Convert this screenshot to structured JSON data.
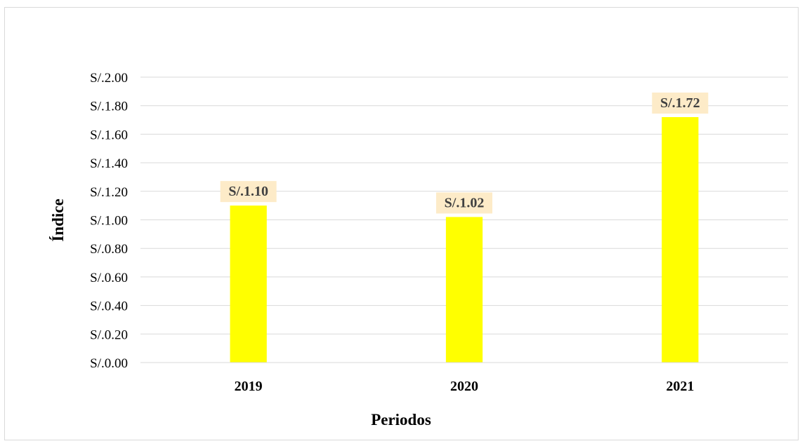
{
  "chart_data": {
    "type": "bar",
    "categories": [
      "2019",
      "2020",
      "2021"
    ],
    "values": [
      1.1,
      1.02,
      1.72
    ],
    "data_labels": [
      "S/.1.10",
      "S/.1.02",
      "S/.1.72"
    ],
    "title": "",
    "xlabel": "Periodos",
    "ylabel": "Índice",
    "ylim": [
      0,
      2.0
    ],
    "ytick_step": 0.2,
    "yticks": [
      "S/.0.00",
      "S/.0.20",
      "S/.0.40",
      "S/.0.60",
      "S/.0.80",
      "S/.1.00",
      "S/.1.20",
      "S/.1.40",
      "S/.1.60",
      "S/.1.80",
      "S/.2.00"
    ],
    "grid": true,
    "legend": "none",
    "colors": {
      "bar": "#ffff00",
      "data_label_bg": "#fdebc8",
      "gridline": "#d9d9d9",
      "axis": "#d9d9d9"
    }
  }
}
